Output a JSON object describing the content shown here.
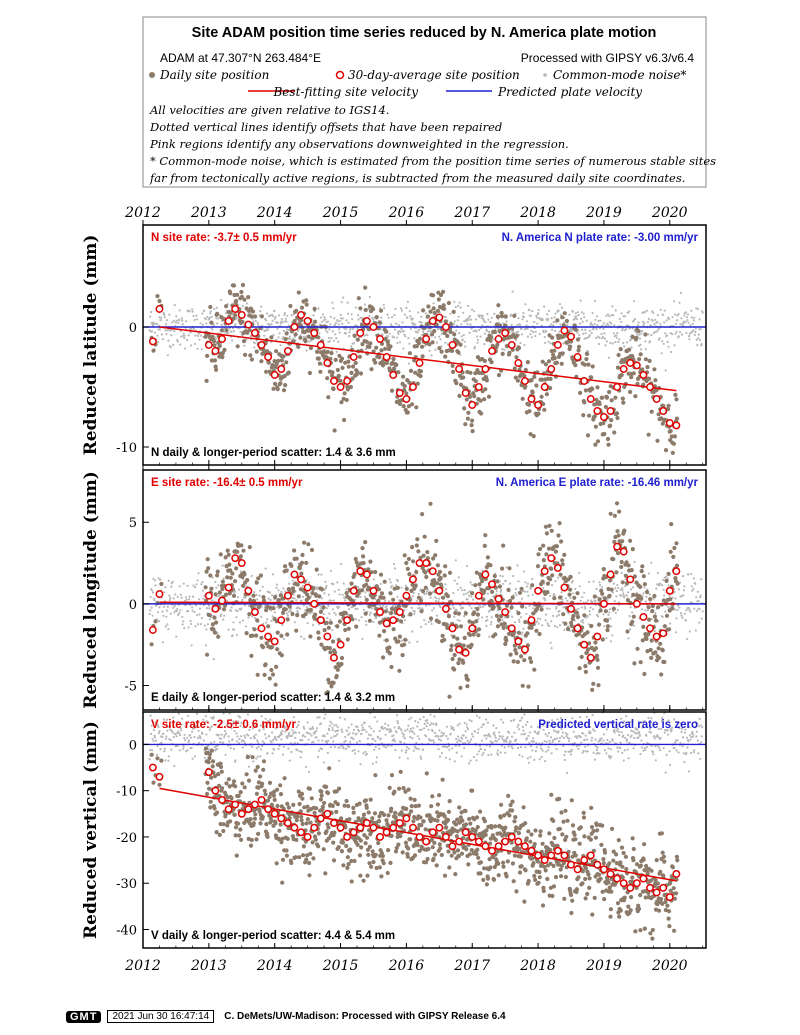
{
  "header": {
    "title": "Site ADAM position time series reduced by N. America plate motion",
    "location": "ADAM at 47.307°N 263.484°E",
    "processed": "Processed with GIPSY v6.3/v6.4",
    "legend": {
      "daily": "Daily site position",
      "avg": "30-day-average site position",
      "cm": "Common-mode noise*",
      "best": "Best-fitting site velocity",
      "pred": "Predicted plate velocity"
    },
    "notes": [
      "All velocities are given relative to IGS14.",
      "Dotted vertical lines identify offsets that have been repaired",
      "Pink regions identify any observations downweighted in the regression.",
      "* Common-mode noise, which is estimated from the position time series of numerous stable sites",
      "far from tectonically active regions, is subtracted from the measured daily site coordinates."
    ]
  },
  "colors": {
    "daily": "#8c7b6a",
    "avg_edge": "#e00000",
    "cm": "#b8b8b8",
    "best": "#e00000",
    "pred": "#2020d0",
    "rate_red": "#e00000",
    "rate_blue": "#2020d0"
  },
  "chart_data": [
    {
      "type": "scatter",
      "panel": "north",
      "ylabel": "Reduced latitude (mm)",
      "xlim": [
        2012.0,
        2020.55
      ],
      "ylim": [
        -11.5,
        8.5
      ],
      "x_ticks": [
        2012,
        2013,
        2014,
        2015,
        2016,
        2017,
        2018,
        2019,
        2020
      ],
      "x_tick_labels": [
        "2012",
        "2013",
        "2014",
        "2015",
        "2016",
        "2017",
        "2018",
        "2019",
        "2020"
      ],
      "y_ticks": [
        0,
        -10
      ],
      "y_tick_labels": [
        "0",
        "-10"
      ],
      "rate_label": "N site rate:  -3.7± 0.5 mm/yr",
      "plate_label": "N. America N plate rate: -3.00 mm/yr",
      "scatter_label": "N daily & longer-period scatter:   1.4 &   3.6 mm",
      "best_fit": {
        "x": [
          2012.25,
          2020.1
        ],
        "y": [
          0.0,
          -5.3
        ]
      },
      "predicted": {
        "y": 0.0
      },
      "series": [
        {
          "name": "30-day-average site position",
          "x": [
            2012.15,
            2012.25,
            2013.0,
            2013.1,
            2013.2,
            2013.3,
            2013.4,
            2013.5,
            2013.6,
            2013.7,
            2013.8,
            2013.9,
            2014.0,
            2014.1,
            2014.2,
            2014.3,
            2014.4,
            2014.5,
            2014.6,
            2014.7,
            2014.8,
            2014.9,
            2015.0,
            2015.1,
            2015.2,
            2015.3,
            2015.4,
            2015.5,
            2015.6,
            2015.7,
            2015.8,
            2015.9,
            2016.0,
            2016.1,
            2016.2,
            2016.3,
            2016.4,
            2016.5,
            2016.6,
            2016.7,
            2016.8,
            2016.9,
            2017.0,
            2017.1,
            2017.2,
            2017.3,
            2017.4,
            2017.5,
            2017.6,
            2017.7,
            2017.8,
            2017.9,
            2018.0,
            2018.1,
            2018.2,
            2018.3,
            2018.4,
            2018.5,
            2018.6,
            2018.7,
            2018.8,
            2018.9,
            2019.0,
            2019.1,
            2019.2,
            2019.3,
            2019.4,
            2019.5,
            2019.6,
            2019.7,
            2019.8,
            2019.9,
            2020.0,
            2020.1
          ],
          "y": [
            -1.2,
            1.5,
            -1.5,
            -2.0,
            -1.0,
            0.5,
            1.5,
            1.0,
            0.2,
            -0.5,
            -1.5,
            -2.5,
            -4.0,
            -3.5,
            -2.0,
            0.0,
            1.0,
            0.5,
            -0.5,
            -1.5,
            -3.0,
            -4.5,
            -5.0,
            -4.5,
            -2.5,
            -0.5,
            0.5,
            0.0,
            -1.0,
            -2.5,
            -4.0,
            -5.5,
            -6.0,
            -5.0,
            -3.0,
            -1.0,
            0.5,
            0.8,
            0.0,
            -1.5,
            -3.5,
            -5.5,
            -6.5,
            -5.0,
            -3.5,
            -2.0,
            -1.0,
            -0.5,
            -1.5,
            -3.0,
            -4.5,
            -6.0,
            -6.5,
            -5.0,
            -3.5,
            -1.5,
            -0.3,
            -0.8,
            -2.5,
            -4.5,
            -6.0,
            -7.0,
            -7.5,
            -7.0,
            -5.0,
            -3.5,
            -3.0,
            -3.2,
            -4.0,
            -5.0,
            -6.0,
            -7.0,
            -8.0,
            -8.2
          ]
        }
      ]
    },
    {
      "type": "scatter",
      "panel": "east",
      "ylabel": "Reduced longitude (mm)",
      "xlim": [
        2012.0,
        2020.55
      ],
      "ylim": [
        -6.5,
        8.2
      ],
      "x_ticks": [
        2012,
        2013,
        2014,
        2015,
        2016,
        2017,
        2018,
        2019,
        2020
      ],
      "y_ticks": [
        5,
        0,
        -5
      ],
      "y_tick_labels": [
        "5",
        "0",
        "-5"
      ],
      "rate_label": "E site rate: -16.4± 0.5 mm/yr",
      "plate_label": "N. America E plate rate: -16.46 mm/yr",
      "scatter_label": "E daily & longer-period scatter:   1.4 &   3.2 mm",
      "best_fit": {
        "x": [
          2012.25,
          2020.1
        ],
        "y": [
          0.1,
          0.0
        ]
      },
      "predicted": {
        "y": 0.0
      },
      "series": [
        {
          "name": "30-day-average site position",
          "x": [
            2012.15,
            2012.25,
            2013.0,
            2013.1,
            2013.2,
            2013.3,
            2013.4,
            2013.5,
            2013.6,
            2013.7,
            2013.8,
            2013.9,
            2014.0,
            2014.1,
            2014.2,
            2014.3,
            2014.4,
            2014.5,
            2014.6,
            2014.7,
            2014.8,
            2014.9,
            2015.0,
            2015.1,
            2015.2,
            2015.3,
            2015.4,
            2015.5,
            2015.6,
            2015.7,
            2015.8,
            2015.9,
            2016.0,
            2016.1,
            2016.2,
            2016.3,
            2016.4,
            2016.5,
            2016.6,
            2016.7,
            2016.8,
            2016.9,
            2017.0,
            2017.1,
            2017.2,
            2017.3,
            2017.4,
            2017.5,
            2017.6,
            2017.7,
            2017.8,
            2017.9,
            2018.0,
            2018.1,
            2018.2,
            2018.3,
            2018.4,
            2018.5,
            2018.6,
            2018.7,
            2018.8,
            2018.9,
            2019.0,
            2019.1,
            2019.2,
            2019.3,
            2019.4,
            2019.5,
            2019.6,
            2019.7,
            2019.8,
            2019.9,
            2020.0,
            2020.1
          ],
          "y": [
            -1.6,
            0.6,
            0.5,
            -0.3,
            0.2,
            1.0,
            2.8,
            2.5,
            0.8,
            -0.5,
            -1.5,
            -2.0,
            -2.3,
            -1.0,
            0.5,
            1.8,
            1.5,
            1.0,
            0.0,
            -1.0,
            -2.0,
            -3.3,
            -2.5,
            -1.0,
            0.8,
            2.0,
            1.8,
            0.8,
            -0.5,
            -1.2,
            -1.0,
            -0.5,
            0.5,
            1.5,
            2.5,
            2.5,
            2.0,
            0.8,
            -0.3,
            -1.5,
            -2.8,
            -3.0,
            -1.5,
            0.5,
            1.8,
            1.2,
            0.3,
            -0.5,
            -1.5,
            -2.3,
            -2.8,
            -1.0,
            0.8,
            2.0,
            2.8,
            2.2,
            1.0,
            -0.3,
            -1.5,
            -2.5,
            -3.3,
            -2.0,
            0.0,
            1.8,
            3.5,
            3.2,
            1.5,
            0.0,
            -0.8,
            -1.5,
            -2.0,
            -1.8,
            0.8,
            2.0
          ]
        }
      ]
    },
    {
      "type": "scatter",
      "panel": "vertical",
      "ylabel": "Reduced vertical (mm)",
      "xlim": [
        2012.0,
        2020.55
      ],
      "ylim": [
        -44,
        7
      ],
      "x_ticks": [
        2012,
        2013,
        2014,
        2015,
        2016,
        2017,
        2018,
        2019,
        2020
      ],
      "x_tick_labels": [
        "2012",
        "2013",
        "2014",
        "2015",
        "2016",
        "2017",
        "2018",
        "2019",
        "2020"
      ],
      "y_ticks": [
        0,
        -10,
        -20,
        -30,
        -40
      ],
      "y_tick_labels": [
        "0",
        "-10",
        "-20",
        "-30",
        "-40"
      ],
      "rate_label": "V site rate:  -2.5± 0.6 mm/yr",
      "plate_label": "Predicted vertical rate is zero",
      "scatter_label": "V daily & longer-period scatter:   4.4 &   5.4 mm",
      "best_fit": {
        "x": [
          2012.25,
          2020.1
        ],
        "y": [
          -9.5,
          -29.5
        ]
      },
      "predicted": {
        "y": 0.0
      },
      "series": [
        {
          "name": "30-day-average site position",
          "x": [
            2012.15,
            2012.25,
            2013.0,
            2013.1,
            2013.2,
            2013.3,
            2013.4,
            2013.5,
            2013.6,
            2013.7,
            2013.8,
            2013.9,
            2014.0,
            2014.1,
            2014.2,
            2014.3,
            2014.4,
            2014.5,
            2014.6,
            2014.7,
            2014.8,
            2014.9,
            2015.0,
            2015.1,
            2015.2,
            2015.3,
            2015.4,
            2015.5,
            2015.6,
            2015.7,
            2015.8,
            2015.9,
            2016.0,
            2016.1,
            2016.2,
            2016.3,
            2016.4,
            2016.5,
            2016.6,
            2016.7,
            2016.8,
            2016.9,
            2017.0,
            2017.1,
            2017.2,
            2017.3,
            2017.4,
            2017.5,
            2017.6,
            2017.7,
            2017.8,
            2017.9,
            2018.0,
            2018.1,
            2018.2,
            2018.3,
            2018.4,
            2018.5,
            2018.6,
            2018.7,
            2018.8,
            2018.9,
            2019.0,
            2019.1,
            2019.2,
            2019.3,
            2019.4,
            2019.5,
            2019.6,
            2019.7,
            2019.8,
            2019.9,
            2020.0,
            2020.1
          ],
          "y": [
            -5,
            -7,
            -6,
            -10,
            -12,
            -14,
            -13,
            -15,
            -14,
            -13,
            -12,
            -14,
            -15,
            -16,
            -17,
            -18,
            -19,
            -20,
            -18,
            -16,
            -15,
            -17,
            -18,
            -20,
            -19,
            -18,
            -17,
            -18,
            -20,
            -19,
            -18,
            -17,
            -16,
            -18,
            -20,
            -21,
            -19,
            -18,
            -20,
            -22,
            -21,
            -19,
            -20,
            -21,
            -22,
            -23,
            -22,
            -21,
            -20,
            -21,
            -22,
            -23,
            -24,
            -25,
            -24,
            -23,
            -24,
            -26,
            -27,
            -25,
            -24,
            -26,
            -27,
            -28,
            -29,
            -30,
            -31,
            -30,
            -29,
            -31,
            -32,
            -31,
            -33,
            -28
          ]
        }
      ]
    }
  ]
}
